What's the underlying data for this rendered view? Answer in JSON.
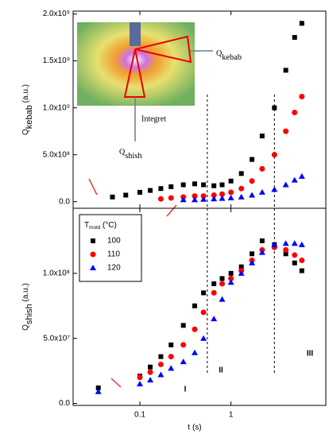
{
  "chart_data": [
    {
      "type": "scatter",
      "ylabel": {
        "text": "Q",
        "sub": "kebab",
        "suffix": " (a.u.)"
      },
      "xlim": [
        0.0185,
        11
      ],
      "xticks": [
        0.1,
        1
      ],
      "log_x": true,
      "ylim": [
        -70000000,
        2030000000
      ],
      "yticks": [
        {
          "value": 0,
          "label": "0.0"
        },
        {
          "value": 500000000,
          "label": "5.0x10⁸"
        },
        {
          "value": 1000000000,
          "label": "1.0x10⁹"
        },
        {
          "value": 1500000000,
          "label": "1.5x10⁹"
        },
        {
          "value": 2000000000,
          "label": "2.0x10⁹"
        }
      ],
      "vlines": [
        0.55,
        3
      ],
      "inset": {
        "kebab": {
          "text": "Q",
          "sub": "kebab"
        },
        "integrate": "Integret",
        "shish": {
          "text": "Q",
          "sub": "shish"
        }
      },
      "x": [
        0.05,
        0.07,
        0.1,
        0.13,
        0.17,
        0.22,
        0.3,
        0.4,
        0.5,
        0.65,
        0.8,
        1.0,
        1.3,
        1.7,
        2.2,
        3,
        4,
        5,
        6
      ],
      "series": [
        {
          "color": "#000000",
          "marker": "square",
          "values": [
            50000000,
            70000000,
            100000000,
            120000000,
            140000000,
            160000000,
            180000000,
            190000000,
            180000000,
            170000000,
            180000000,
            220000000,
            300000000,
            450000000,
            700000000,
            1000000000,
            1400000000,
            1750000000,
            1900000000
          ]
        },
        {
          "color": "#ff0000",
          "marker": "circle",
          "values": [
            null,
            null,
            null,
            null,
            30000000,
            40000000,
            50000000,
            60000000,
            60000000,
            70000000,
            80000000,
            100000000,
            140000000,
            220000000,
            350000000,
            500000000,
            750000000,
            950000000,
            1120000000
          ]
        },
        {
          "color": "#0000ff",
          "marker": "triangle",
          "values": [
            null,
            null,
            null,
            null,
            null,
            null,
            20000000,
            20000000,
            25000000,
            30000000,
            35000000,
            40000000,
            50000000,
            70000000,
            100000000,
            130000000,
            180000000,
            230000000,
            270000000
          ]
        }
      ]
    },
    {
      "type": "scatter",
      "ylabel": {
        "text": "Q",
        "sub": "shish",
        "suffix": " (a.u.)"
      },
      "xlabel": "t (s)",
      "xlim": [
        0.0185,
        11
      ],
      "xticks": [
        0.1,
        1
      ],
      "log_x": true,
      "ylim": [
        -1500000,
        150000000
      ],
      "yticks": [
        {
          "value": 0,
          "label": "0.0"
        },
        {
          "value": 50000000,
          "label": "5.0x10⁷"
        },
        {
          "value": 100000000,
          "label": "1.0x10⁸"
        }
      ],
      "vlines": [
        0.55,
        3
      ],
      "regions": [
        "I",
        "II",
        "III"
      ],
      "legend_title": {
        "text": "T",
        "sub": "mold",
        "suffix": " (°C)"
      },
      "x": [
        0.035,
        0.1,
        0.13,
        0.17,
        0.22,
        0.3,
        0.4,
        0.5,
        0.65,
        0.8,
        1.0,
        1.3,
        1.7,
        2.2,
        3,
        4,
        5,
        6
      ],
      "series": [
        {
          "name": "100",
          "color": "#000000",
          "marker": "square",
          "values": [
            12000000,
            21000000,
            28000000,
            36000000,
            45000000,
            60000000,
            75000000,
            85000000,
            92000000,
            96000000,
            100000000,
            105000000,
            115000000,
            125000000,
            122000000,
            115000000,
            108000000,
            102000000
          ]
        },
        {
          "name": "110",
          "color": "#ff0000",
          "marker": "circle",
          "values": [
            null,
            20000000,
            24000000,
            30000000,
            36000000,
            45000000,
            57000000,
            70000000,
            85000000,
            92000000,
            96000000,
            102000000,
            110000000,
            118000000,
            120000000,
            118000000,
            114000000,
            110000000
          ]
        },
        {
          "name": "120",
          "color": "#0000ff",
          "marker": "triangle",
          "values": [
            9000000,
            15000000,
            18000000,
            22000000,
            27000000,
            32000000,
            39000000,
            50000000,
            65000000,
            80000000,
            93000000,
            100000000,
            108000000,
            116000000,
            122000000,
            123000000,
            123000000,
            122000000
          ]
        }
      ]
    }
  ]
}
